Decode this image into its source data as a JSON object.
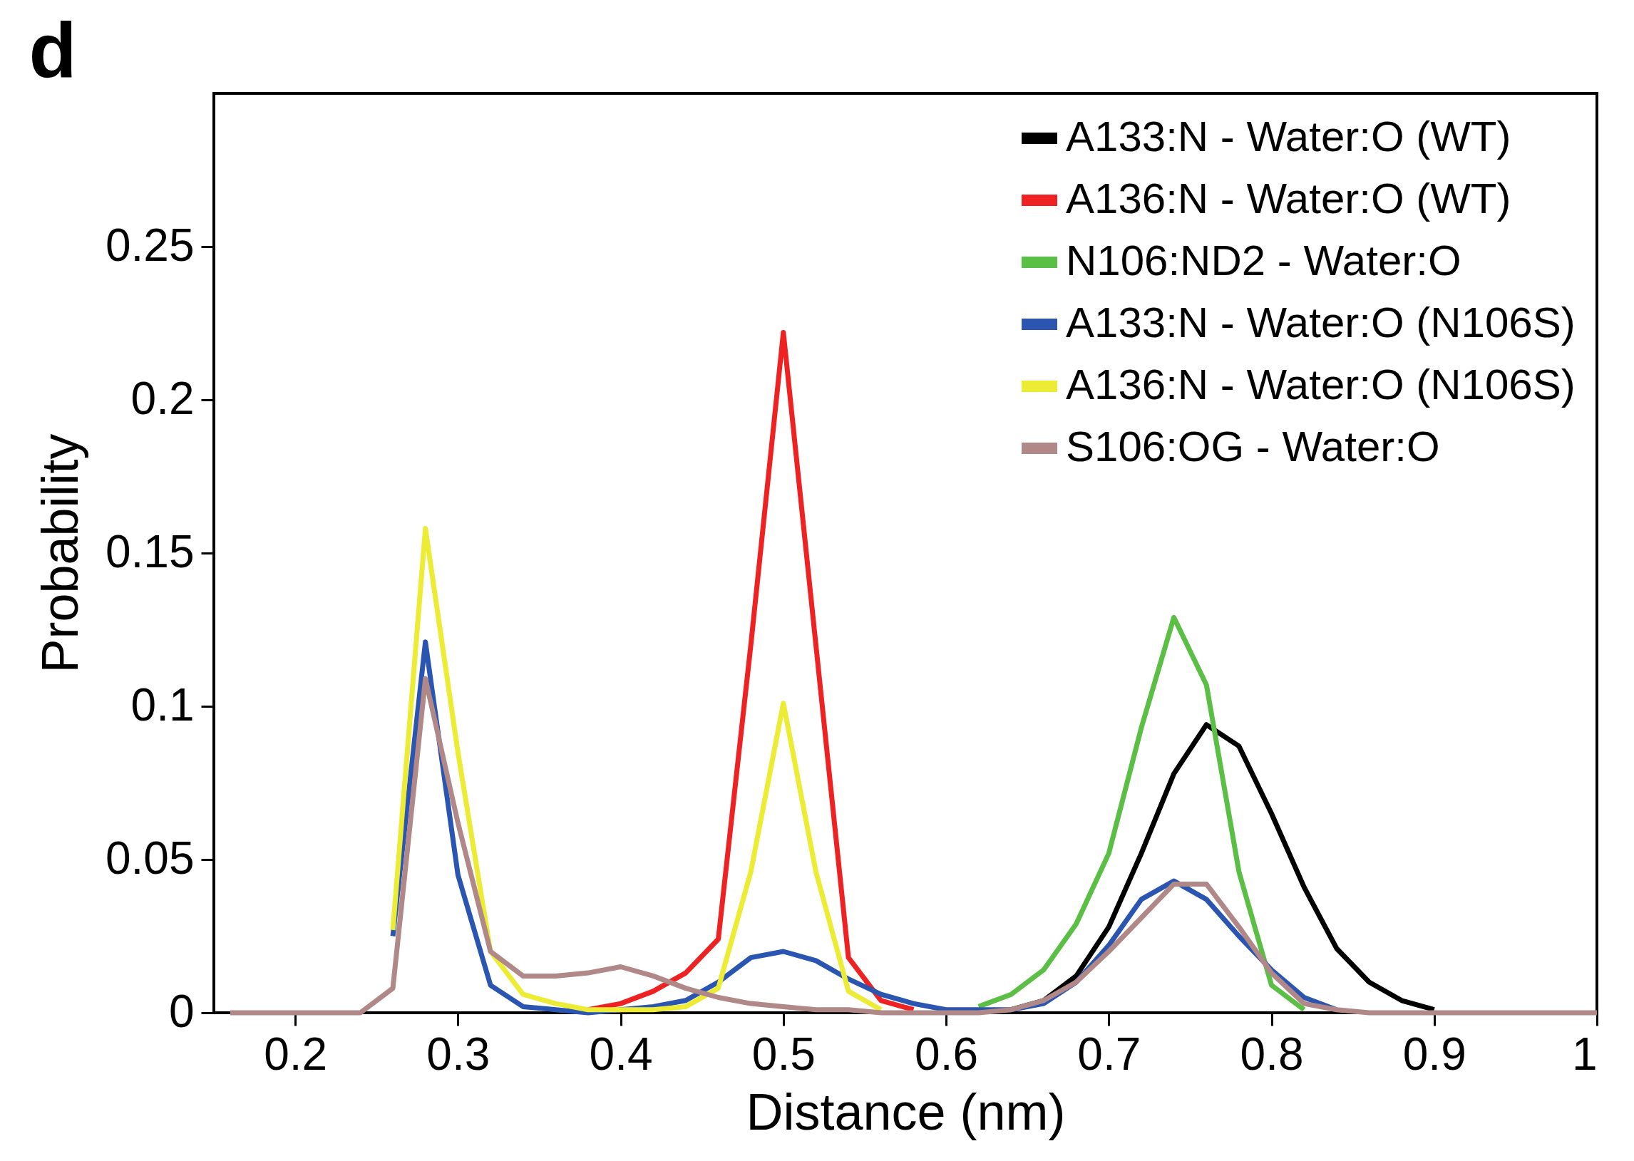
{
  "chart_data": {
    "type": "line",
    "title": "d",
    "xlabel": "Distance (nm)",
    "ylabel": "Probability",
    "x": [
      0.16,
      0.18,
      0.2,
      0.22,
      0.24,
      0.26,
      0.28,
      0.3,
      0.32,
      0.34,
      0.36,
      0.38,
      0.4,
      0.42,
      0.44,
      0.46,
      0.48,
      0.5,
      0.52,
      0.54,
      0.56,
      0.58,
      0.6,
      0.62,
      0.64,
      0.66,
      0.68,
      0.7,
      0.72,
      0.74,
      0.76,
      0.78,
      0.8,
      0.82,
      0.84,
      0.86,
      0.88,
      0.9,
      0.92,
      0.94,
      0.96,
      0.98,
      1.0
    ],
    "series": [
      {
        "name": "A133:N - Water:O (WT)",
        "color": "#000000",
        "values": [
          null,
          null,
          null,
          null,
          null,
          null,
          null,
          null,
          null,
          null,
          null,
          null,
          null,
          null,
          null,
          null,
          null,
          null,
          null,
          null,
          null,
          null,
          null,
          null,
          0.001,
          0.004,
          0.012,
          0.028,
          0.052,
          0.078,
          0.094,
          0.087,
          0.065,
          0.041,
          0.021,
          0.01,
          0.004,
          0.001,
          null,
          null,
          null,
          null,
          null
        ]
      },
      {
        "name": "A136:N - Water:O (WT)",
        "color": "#ee2222",
        "values": [
          null,
          null,
          null,
          null,
          null,
          null,
          null,
          null,
          null,
          null,
          null,
          0.001,
          0.003,
          0.007,
          0.013,
          0.024,
          0.12,
          0.222,
          0.12,
          0.018,
          0.004,
          0.001,
          null,
          null,
          null,
          null,
          null,
          null,
          null,
          null,
          null,
          null,
          null,
          null,
          null,
          null,
          null,
          null,
          null,
          null,
          null,
          null,
          null
        ]
      },
      {
        "name": "N106:ND2 - Water:O",
        "color": "#5cbf45",
        "values": [
          null,
          null,
          null,
          null,
          null,
          null,
          null,
          null,
          null,
          null,
          null,
          null,
          null,
          null,
          null,
          null,
          null,
          null,
          null,
          null,
          null,
          null,
          null,
          0.002,
          0.006,
          0.014,
          0.029,
          0.052,
          0.093,
          0.129,
          0.107,
          0.046,
          0.009,
          0.001,
          null,
          null,
          null,
          null,
          null,
          null,
          null,
          null,
          null
        ]
      },
      {
        "name": "A133:N - Water:O (N106S)",
        "color": "#2a55b0",
        "values": [
          null,
          null,
          null,
          null,
          null,
          0.025,
          0.121,
          0.045,
          0.009,
          0.002,
          0.001,
          0,
          0.001,
          0.002,
          0.004,
          0.01,
          0.018,
          0.02,
          0.017,
          0.011,
          0.006,
          0.003,
          0.001,
          0.001,
          0.001,
          0.003,
          0.01,
          0.022,
          0.037,
          0.043,
          0.037,
          0.025,
          0.014,
          0.005,
          0.001,
          null,
          null,
          null,
          null,
          null,
          null,
          null,
          null
        ]
      },
      {
        "name": "A136:N - Water:O (N106S)",
        "color": "#ecec35",
        "values": [
          null,
          null,
          null,
          null,
          null,
          0.027,
          0.158,
          0.085,
          0.02,
          0.006,
          0.003,
          0.001,
          0.001,
          0.001,
          0.002,
          0.008,
          0.046,
          0.101,
          0.046,
          0.007,
          0.001,
          null,
          null,
          null,
          null,
          null,
          null,
          null,
          null,
          null,
          null,
          null,
          null,
          null,
          null,
          null,
          null,
          null,
          null,
          null,
          null,
          null,
          null
        ]
      },
      {
        "name": "S106:OG - Water:O",
        "color": "#b08888",
        "values": [
          0,
          0,
          0,
          0,
          0,
          0.008,
          0.109,
          0.062,
          0.02,
          0.012,
          0.012,
          0.013,
          0.015,
          0.012,
          0.008,
          0.005,
          0.003,
          0.002,
          0.001,
          0.001,
          0,
          0,
          0,
          0,
          0.001,
          0.004,
          0.01,
          0.02,
          0.031,
          0.042,
          0.042,
          0.028,
          0.013,
          0.003,
          0.001,
          0,
          0,
          0,
          0,
          0,
          0,
          0,
          0
        ]
      }
    ],
    "xlim": [
      0.15,
      1
    ],
    "xticks": [
      0.2,
      0.3,
      0.4,
      0.5,
      0.6,
      0.7,
      0.8,
      0.9,
      1
    ],
    "ylim": [
      0,
      0.3
    ],
    "yticks": [
      0,
      0.05,
      0.1,
      0.15,
      0.2,
      0.25
    ],
    "legend": "top right",
    "grid": false
  }
}
